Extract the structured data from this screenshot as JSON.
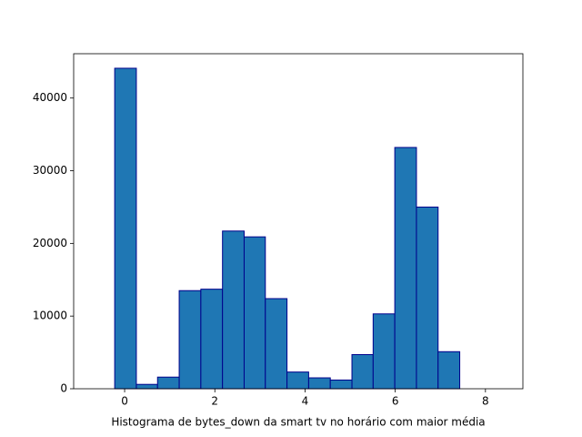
{
  "chart_data": {
    "type": "histogram",
    "xlabel": "Histograma de bytes_down da smart tv no horário com maior média",
    "bins": [
      -0.7,
      -0.22,
      0.26,
      0.73,
      1.21,
      1.69,
      2.17,
      2.65,
      3.12,
      3.6,
      4.08,
      4.56,
      5.04,
      5.51,
      5.99,
      6.47,
      6.95,
      7.43,
      7.9,
      8.38
    ],
    "values": [
      0,
      44100,
      600,
      1600,
      13500,
      13700,
      21700,
      20900,
      12400,
      2300,
      1500,
      1200,
      4700,
      10300,
      33200,
      25000,
      5100,
      0,
      0
    ],
    "color": "#1f77b4",
    "edgecolor": "#00008b",
    "xlim": [
      -1.13,
      8.83
    ],
    "xticks": [
      0,
      2,
      4,
      6,
      8
    ],
    "ylim": [
      0,
      46100
    ],
    "yticks": [
      0,
      10000,
      20000,
      30000,
      40000
    ]
  }
}
